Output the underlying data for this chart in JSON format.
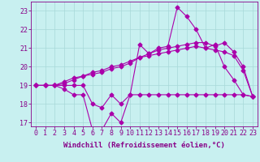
{
  "xlabel": "Windchill (Refroidissement éolien,°C)",
  "background_color": "#c8f0f0",
  "grid_color": "#a8d8d8",
  "line_color": "#aa00aa",
  "x_hours": [
    0,
    1,
    2,
    3,
    4,
    5,
    6,
    7,
    8,
    9,
    10,
    11,
    12,
    13,
    14,
    15,
    16,
    17,
    18,
    19,
    20,
    21,
    22,
    23
  ],
  "y_windchill": [
    19,
    19,
    19,
    18.8,
    18.5,
    18.5,
    16.6,
    16.6,
    17.5,
    17.0,
    18.5,
    18.5,
    18.5,
    18.5,
    18.5,
    18.5,
    18.5,
    18.5,
    18.5,
    18.5,
    18.5,
    18.5,
    18.5,
    18.4
  ],
  "y_jagged": [
    19,
    19,
    19,
    19.0,
    19.0,
    19.0,
    18.0,
    17.8,
    18.5,
    18.0,
    18.5,
    21.2,
    20.7,
    21.0,
    21.1,
    23.2,
    22.7,
    22.0,
    21.0,
    21.2,
    20.0,
    19.3,
    18.5,
    18.4
  ],
  "y_gradual1": [
    19,
    19,
    19,
    19.1,
    19.3,
    19.5,
    19.6,
    19.7,
    19.9,
    20.0,
    20.2,
    20.5,
    20.7,
    20.9,
    21.0,
    21.1,
    21.2,
    21.3,
    21.3,
    21.1,
    21.3,
    20.8,
    20.0,
    18.4
  ],
  "y_gradual2": [
    19,
    19,
    19,
    19.2,
    19.4,
    19.5,
    19.7,
    19.8,
    20.0,
    20.1,
    20.3,
    20.5,
    20.6,
    20.7,
    20.8,
    20.9,
    21.0,
    21.1,
    21.0,
    20.9,
    20.8,
    20.6,
    19.8,
    18.4
  ],
  "ylim": [
    16.8,
    23.5
  ],
  "xlim_min": -0.5,
  "xlim_max": 23.5,
  "yticks": [
    17,
    18,
    19,
    20,
    21,
    22,
    23
  ],
  "xticks": [
    0,
    1,
    2,
    3,
    4,
    5,
    6,
    7,
    8,
    9,
    10,
    11,
    12,
    13,
    14,
    15,
    16,
    17,
    18,
    19,
    20,
    21,
    22,
    23
  ],
  "markersize": 2.5,
  "linewidth": 0.8,
  "xlabel_fontsize": 6.5,
  "tick_fontsize": 6.0,
  "tick_color": "#880088",
  "spine_color": "#880088"
}
